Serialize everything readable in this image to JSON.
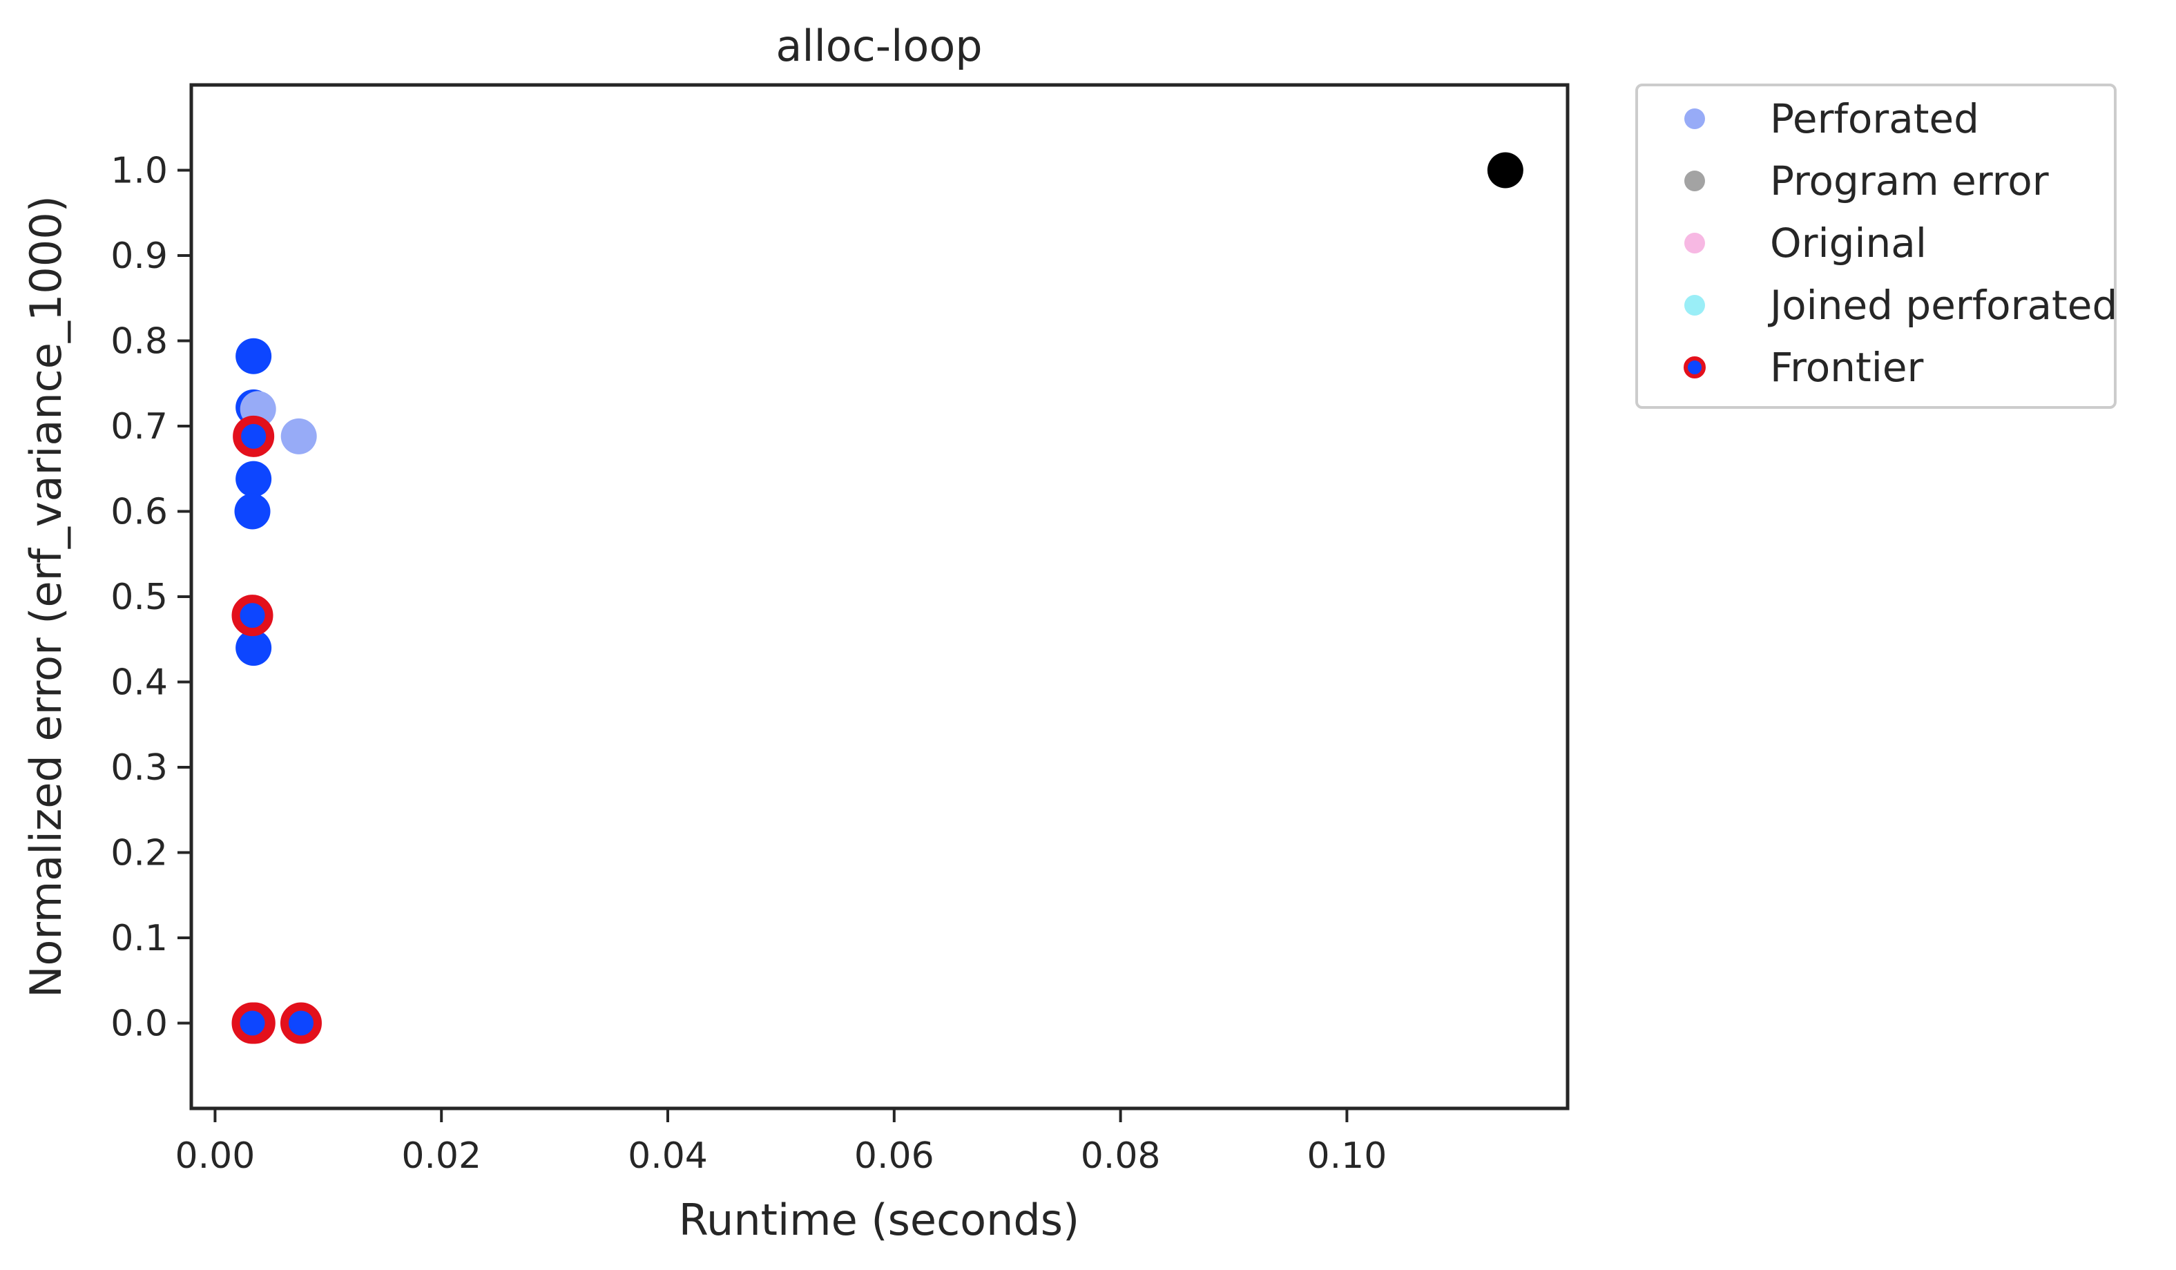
{
  "chart_data": {
    "type": "scatter",
    "title": "alloc-loop",
    "xlabel": "Runtime (seconds)",
    "ylabel": "Normalized error (erf_variance_1000)",
    "xlim": [
      -0.0021,
      0.1195
    ],
    "ylim": [
      -0.1,
      1.1
    ],
    "xticks": [
      0.0,
      0.02,
      0.04,
      0.06,
      0.08,
      0.1
    ],
    "xtick_labels": [
      "0.00",
      "0.02",
      "0.04",
      "0.06",
      "0.08",
      "0.10"
    ],
    "yticks": [
      0.0,
      0.1,
      0.2,
      0.3,
      0.4,
      0.5,
      0.6,
      0.7,
      0.8,
      0.9,
      1.0
    ],
    "ytick_labels": [
      "0.0",
      "0.1",
      "0.2",
      "0.3",
      "0.4",
      "0.5",
      "0.6",
      "0.7",
      "0.8",
      "0.9",
      "1.0"
    ],
    "grid": false,
    "legend_placement": "outside-top-right",
    "series": [
      {
        "name": "Perforated",
        "color": "#97abf7",
        "points": [
          [
            0.0038,
            0.72
          ],
          [
            0.0074,
            0.688
          ]
        ]
      },
      {
        "name": "Program error",
        "color": "#a3a3a3",
        "points": []
      },
      {
        "name": "Original",
        "color": "#f7b8e3",
        "points": []
      },
      {
        "name": "Joined perforated",
        "color": "#9aeef7",
        "points": []
      },
      {
        "name": "Frontier",
        "color": "#0d46ff",
        "edge_color": "#e3101c",
        "points": [
          [
            0.0035,
            0.0
          ],
          [
            0.0033,
            0.0
          ],
          [
            0.0076,
            0.0
          ],
          [
            0.0033,
            0.478
          ],
          [
            0.0034,
            0.688
          ]
        ]
      },
      {
        "name": "",
        "color": "#0d46ff",
        "points": [
          [
            0.0034,
            0.782
          ],
          [
            0.0034,
            0.722
          ],
          [
            0.0036,
            0.72
          ],
          [
            0.0034,
            0.638
          ],
          [
            0.0033,
            0.6
          ],
          [
            0.0034,
            0.44
          ],
          [
            0.0034,
            0.478
          ],
          [
            0.0034,
            0.69
          ]
        ]
      },
      {
        "name": "",
        "color": "#000000",
        "points": [
          [
            0.114,
            1.0
          ]
        ]
      }
    ]
  }
}
